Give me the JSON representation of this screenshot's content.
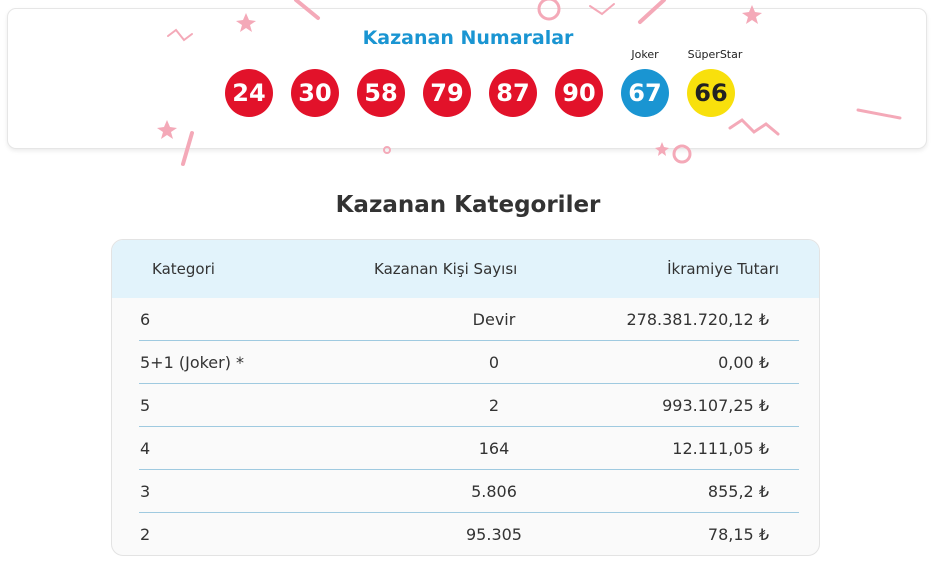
{
  "winning_numbers": {
    "title": "Kazanan Numaralar",
    "numbers": [
      "24",
      "30",
      "58",
      "79",
      "87",
      "90"
    ],
    "joker_label": "Joker",
    "joker": "67",
    "superstar_label": "SüperStar",
    "superstar": "66",
    "colors": {
      "number": "#e2122a",
      "joker": "#1a95d2",
      "superstar": "#f8e00c",
      "title": "#1a95d2"
    }
  },
  "categories": {
    "title": "Kazanan Kategoriler",
    "headers": [
      "Kategori",
      "Kazanan Kişi Sayısı",
      "İkramiye Tutarı"
    ],
    "rows": [
      {
        "category": "6",
        "winners": "Devir",
        "prize": "278.381.720,12 ₺"
      },
      {
        "category": "5+1 (Joker) *",
        "winners": "0",
        "prize": "0,00 ₺"
      },
      {
        "category": "5",
        "winners": "2",
        "prize": "993.107,25 ₺"
      },
      {
        "category": "4",
        "winners": "164",
        "prize": "12.111,05 ₺"
      },
      {
        "category": "3",
        "winners": "5.806",
        "prize": "855,2 ₺"
      },
      {
        "category": "2",
        "winners": "95.305",
        "prize": "78,15 ₺"
      }
    ]
  }
}
